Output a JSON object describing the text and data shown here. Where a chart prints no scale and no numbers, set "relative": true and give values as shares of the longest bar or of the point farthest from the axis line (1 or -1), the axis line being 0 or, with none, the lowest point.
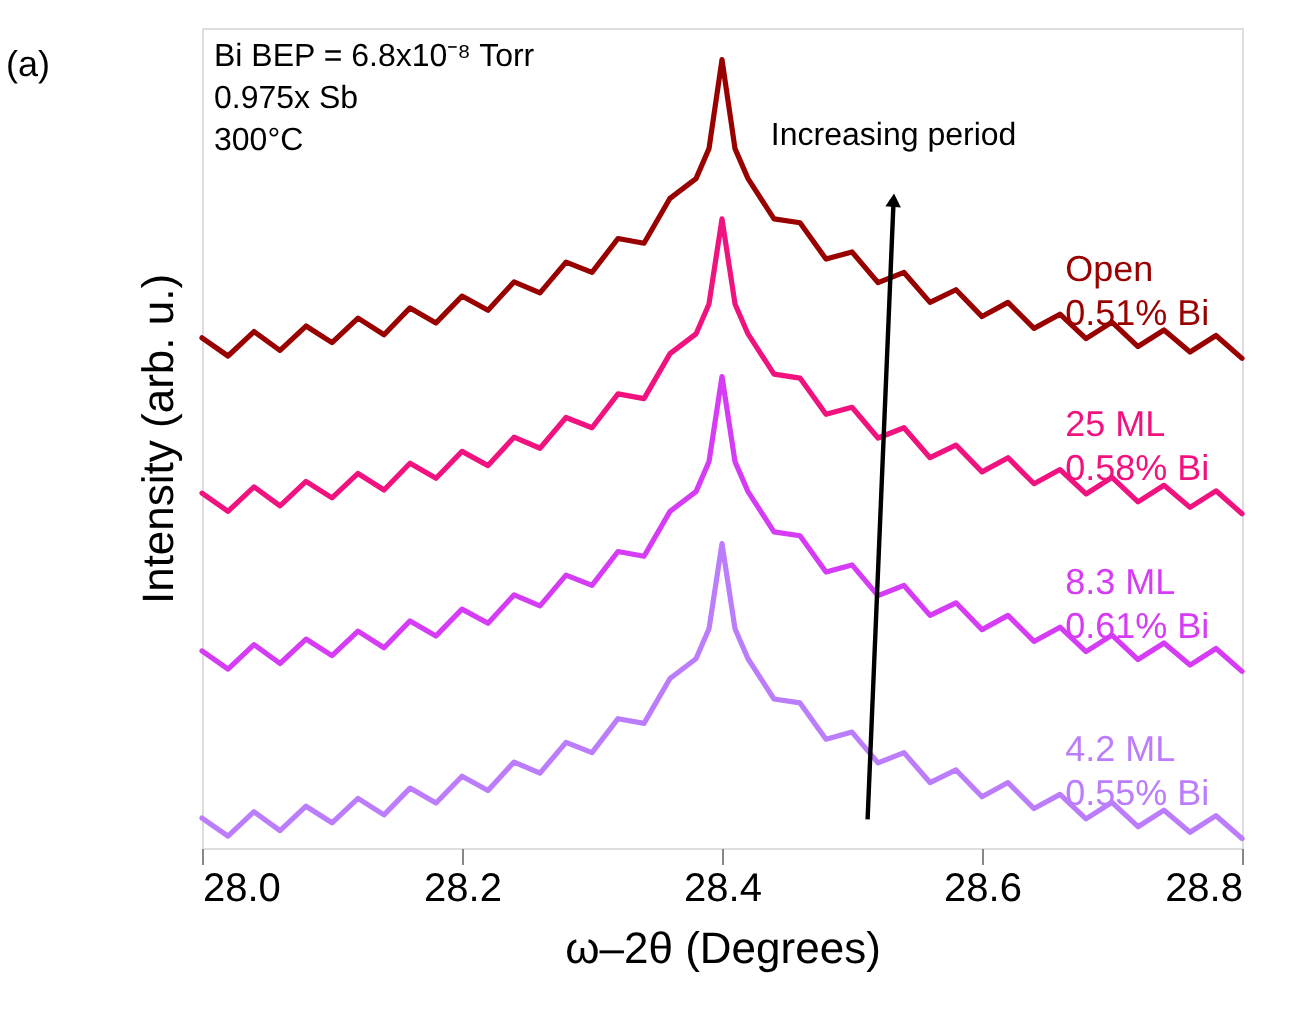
{
  "chart_data": {
    "type": "line",
    "relative": true,
    "xlabel": "ω–2θ (Degrees)",
    "ylabel": "Intensity (arb. u.)",
    "x": [
      28.0,
      28.02,
      28.04,
      28.06,
      28.08,
      28.1,
      28.12,
      28.14,
      28.16,
      28.18,
      28.2,
      28.22,
      28.24,
      28.26,
      28.28,
      28.3,
      28.32,
      28.34,
      28.36,
      28.38,
      28.39,
      28.4,
      28.41,
      28.42,
      28.44,
      28.46,
      28.48,
      28.5,
      28.52,
      28.54,
      28.56,
      28.58,
      28.6,
      28.62,
      28.64,
      28.66,
      28.68,
      28.7,
      28.72,
      28.74,
      28.76,
      28.78,
      28.8
    ],
    "xlim": [
      28.0,
      28.8
    ],
    "xticks": [
      {
        "value": 28,
        "label": "28.0"
      },
      28.2,
      28.4,
      28.6,
      {
        "value": 28.8,
        "label": "28.8"
      }
    ],
    "grid": false,
    "line_style": "solid",
    "marker": "none",
    "series": [
      {
        "name": "Open\n0.51% Bi",
        "color": "#990000",
        "values": [
          0.647,
          0.624,
          0.655,
          0.631,
          0.662,
          0.641,
          0.672,
          0.651,
          0.685,
          0.666,
          0.7,
          0.682,
          0.718,
          0.704,
          0.743,
          0.73,
          0.773,
          0.767,
          0.824,
          0.849,
          0.887,
          1.0,
          0.887,
          0.849,
          0.798,
          0.793,
          0.747,
          0.756,
          0.717,
          0.73,
          0.692,
          0.708,
          0.674,
          0.692,
          0.659,
          0.677,
          0.646,
          0.667,
          0.636,
          0.657,
          0.629,
          0.65,
          0.621
        ]
      },
      {
        "name": "25 ML\n0.58% Bi",
        "color": "#f0137f",
        "values": [
          0.45,
          0.427,
          0.458,
          0.434,
          0.465,
          0.444,
          0.475,
          0.454,
          0.488,
          0.469,
          0.503,
          0.485,
          0.521,
          0.507,
          0.546,
          0.533,
          0.576,
          0.57,
          0.627,
          0.652,
          0.69,
          0.798,
          0.69,
          0.652,
          0.601,
          0.596,
          0.55,
          0.559,
          0.52,
          0.533,
          0.495,
          0.511,
          0.477,
          0.495,
          0.462,
          0.48,
          0.449,
          0.47,
          0.439,
          0.46,
          0.432,
          0.453,
          0.424
        ]
      },
      {
        "name": "8.3 ML\n0.61% Bi",
        "color": "#d63cf5",
        "values": [
          0.25,
          0.227,
          0.258,
          0.234,
          0.265,
          0.244,
          0.275,
          0.254,
          0.288,
          0.269,
          0.303,
          0.285,
          0.321,
          0.307,
          0.346,
          0.333,
          0.376,
          0.37,
          0.427,
          0.452,
          0.49,
          0.598,
          0.49,
          0.452,
          0.401,
          0.396,
          0.35,
          0.359,
          0.32,
          0.333,
          0.295,
          0.311,
          0.277,
          0.295,
          0.262,
          0.28,
          0.249,
          0.27,
          0.239,
          0.26,
          0.232,
          0.253,
          0.224
        ]
      },
      {
        "name": "4.2 ML\n0.55% Bi",
        "color": "#bb7dfc",
        "values": [
          0.038,
          0.015,
          0.046,
          0.022,
          0.053,
          0.032,
          0.063,
          0.042,
          0.076,
          0.057,
          0.091,
          0.073,
          0.109,
          0.095,
          0.134,
          0.121,
          0.164,
          0.158,
          0.215,
          0.24,
          0.278,
          0.386,
          0.278,
          0.24,
          0.189,
          0.184,
          0.138,
          0.147,
          0.108,
          0.121,
          0.083,
          0.099,
          0.065,
          0.083,
          0.05,
          0.068,
          0.037,
          0.058,
          0.027,
          0.048,
          0.02,
          0.041,
          0.012
        ]
      }
    ],
    "annotations": [
      "(a)",
      "Bi BEP = 6.8x10⁻⁸ Torr",
      "0.975x Sb",
      "300°C",
      "Increasing period"
    ]
  }
}
